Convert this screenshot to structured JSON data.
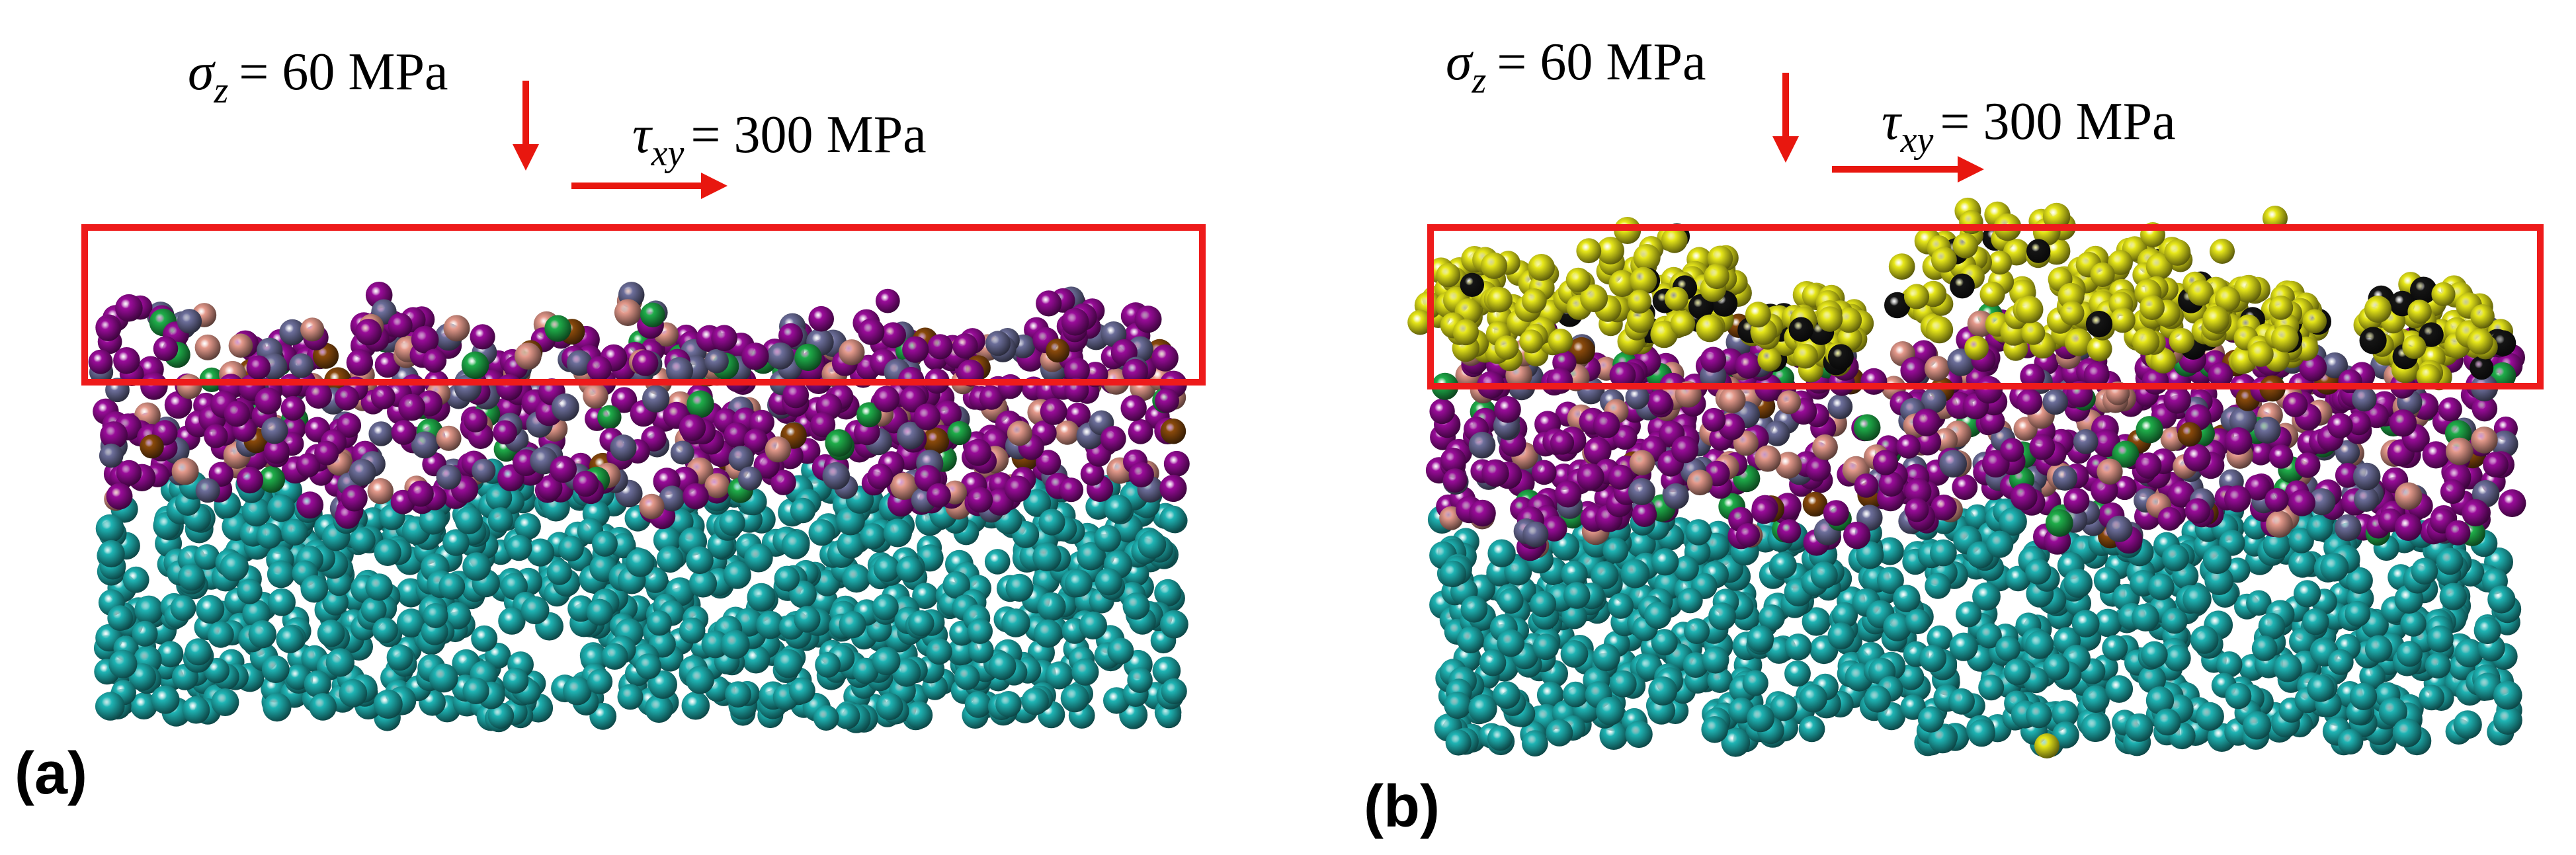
{
  "panels": [
    {
      "label": "(a)",
      "normal_stress": {
        "symbol": "σ",
        "subscript": "z",
        "text": "= 60 MPa"
      },
      "shear_stress": {
        "symbol": "τ",
        "subscript": "xy",
        "text": "= 300 MPa"
      }
    },
    {
      "label": "(b)",
      "normal_stress": {
        "symbol": "σ",
        "subscript": "z",
        "text": "= 60 MPa"
      },
      "shear_stress": {
        "symbol": "τ",
        "subscript": "xy",
        "text": "= 300 MPa"
      }
    }
  ]
}
